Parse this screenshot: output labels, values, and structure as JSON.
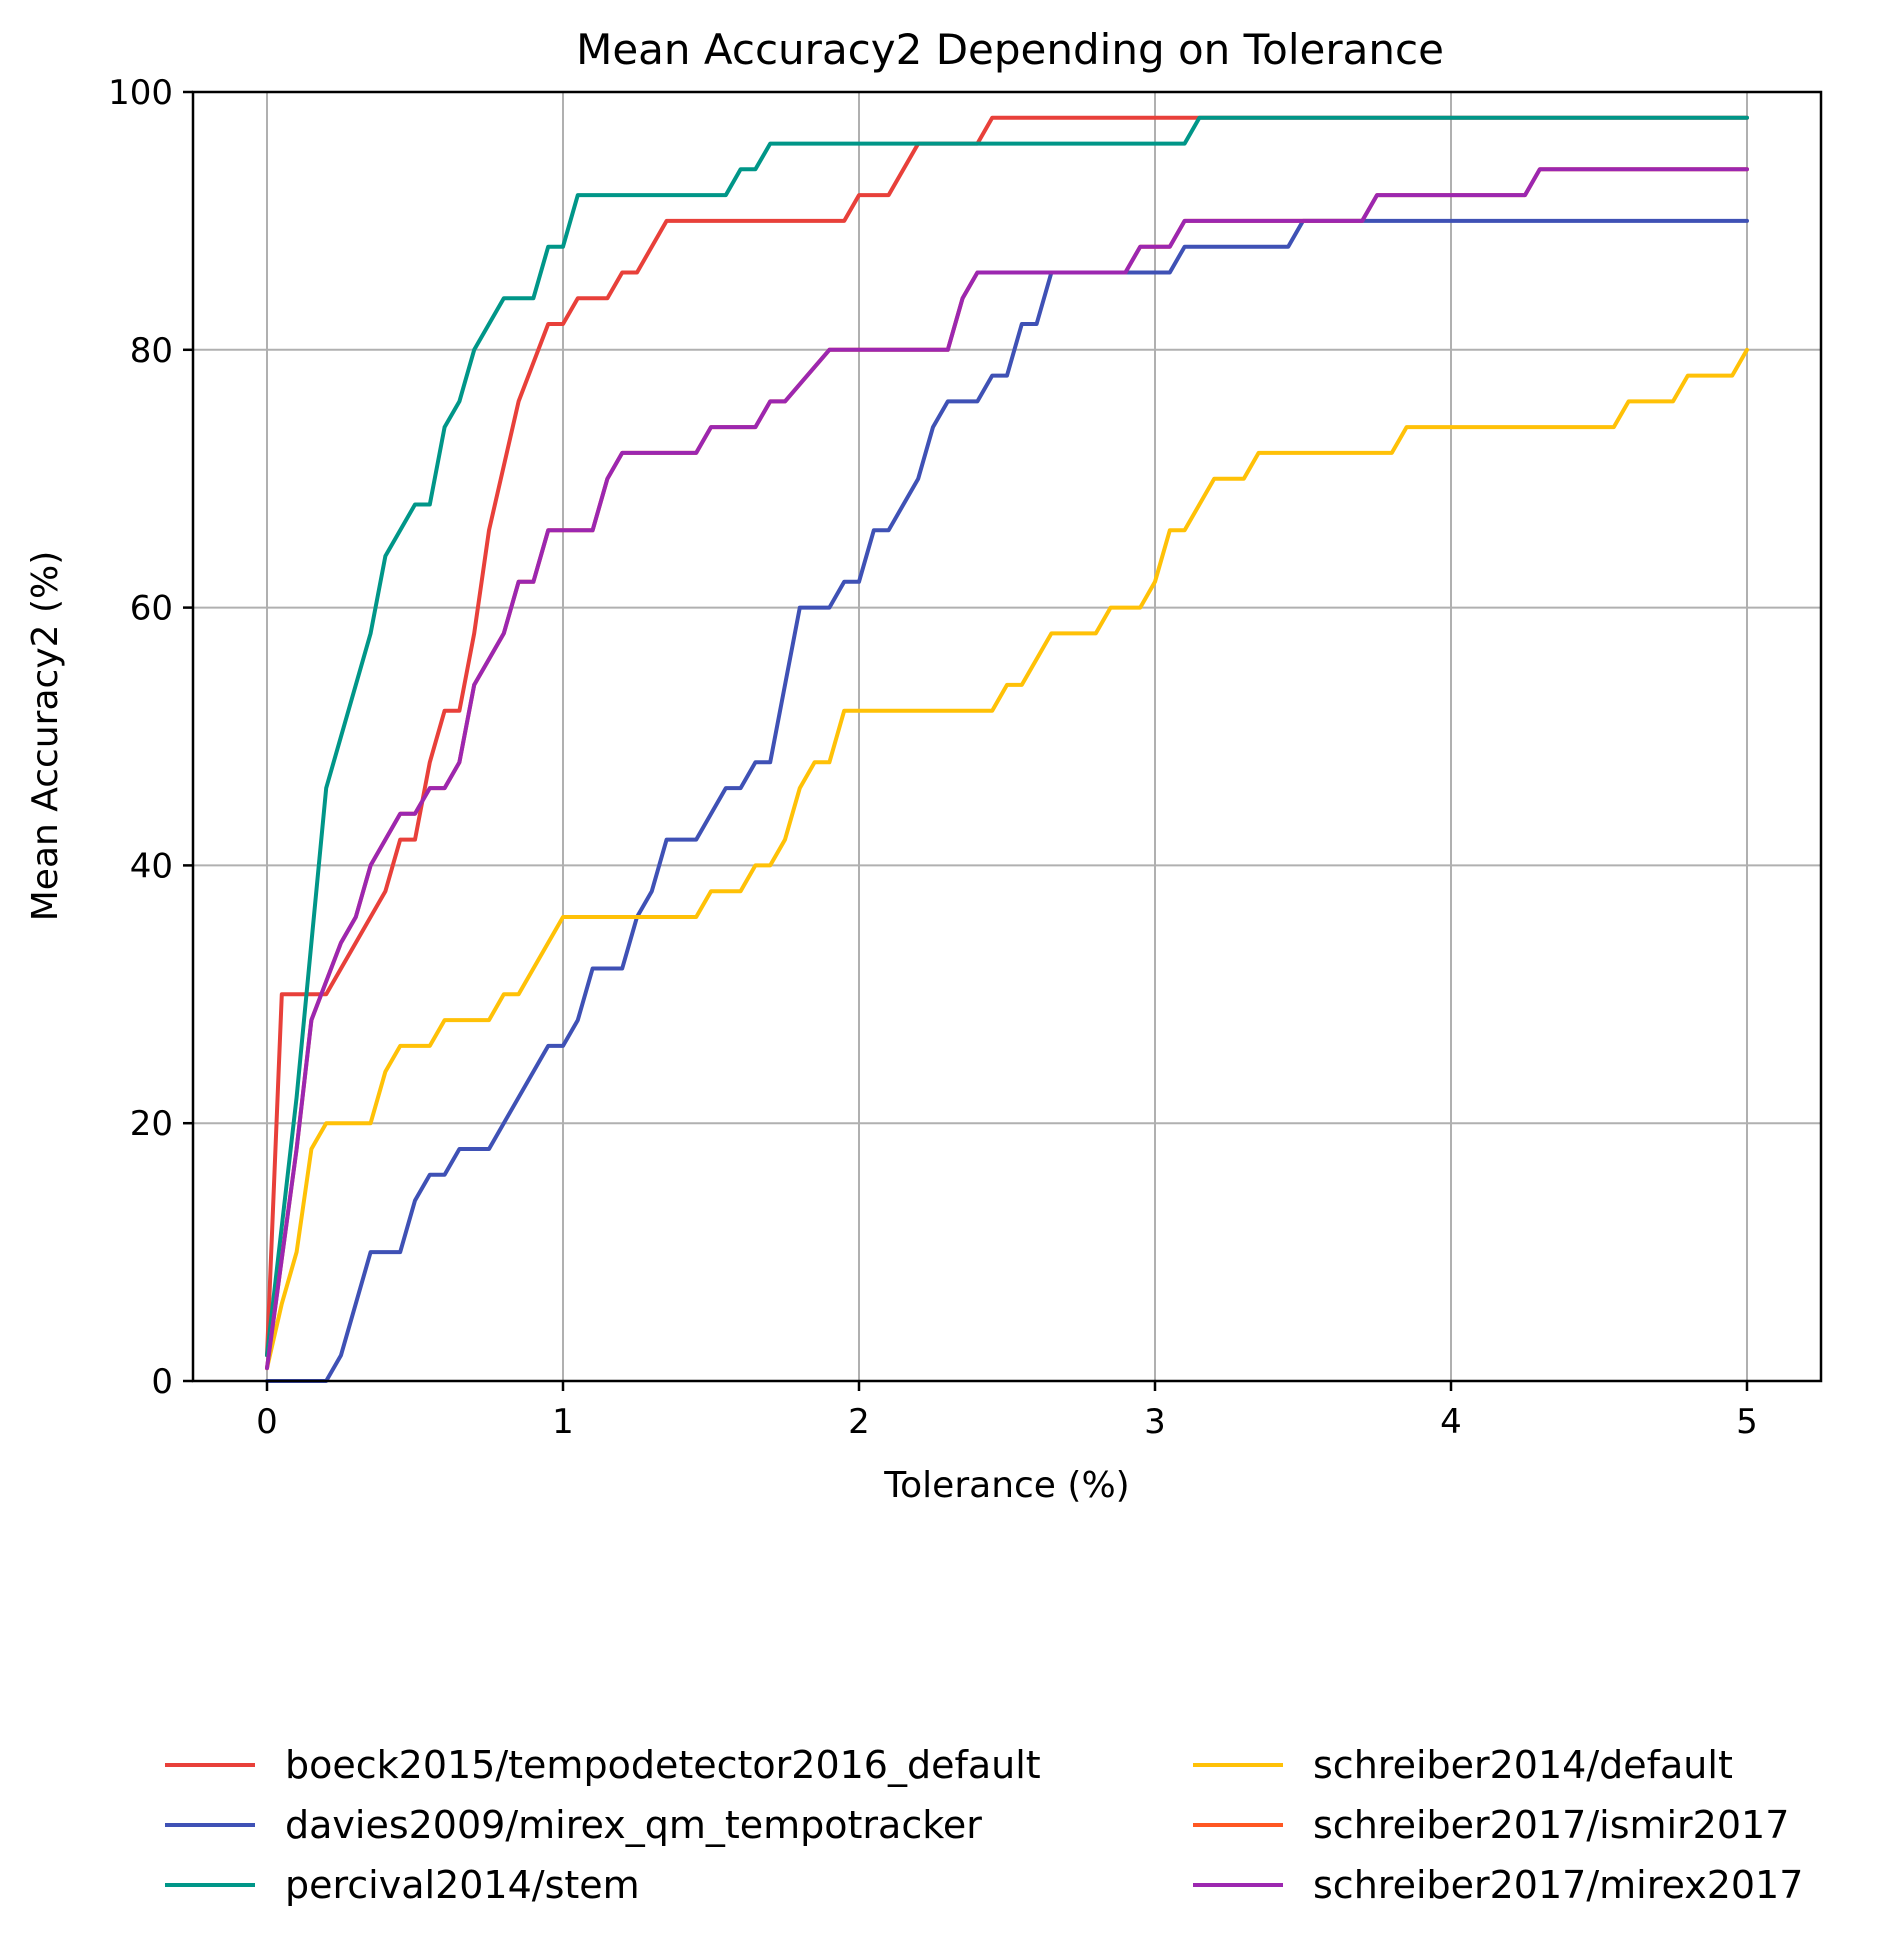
{
  "chart_data": {
    "type": "line",
    "title": "Mean Accuracy2 Depending on Tolerance",
    "xlabel": "Tolerance (%)",
    "ylabel": "Mean Accuracy2 (%)",
    "xlim": [
      -0.25,
      5.25
    ],
    "ylim": [
      0,
      100
    ],
    "xticks": [
      0,
      1,
      2,
      3,
      4,
      5
    ],
    "yticks": [
      0,
      20,
      40,
      60,
      80,
      100
    ],
    "grid": true,
    "legend_position": "bottom, two columns",
    "series": [
      {
        "name": "boeck2015/tempodetector2016_default",
        "color": "#e8403a",
        "x": [
          0,
          0.05,
          0.2,
          0.25,
          0.3,
          0.4,
          0.45,
          0.5,
          0.55,
          0.6,
          0.65,
          0.7,
          0.75,
          0.85,
          0.95,
          1.0,
          1.05,
          1.15,
          1.2,
          1.25,
          1.35,
          1.4,
          1.95,
          2.0,
          2.1,
          2.2,
          2.3,
          2.4,
          2.45,
          5.0
        ],
        "y": [
          2,
          30,
          30,
          32,
          34,
          38,
          42,
          42,
          48,
          52,
          52,
          58,
          66,
          76,
          82,
          82,
          84,
          84,
          86,
          86,
          90,
          90,
          90,
          92,
          92,
          96,
          96,
          96,
          98,
          98
        ]
      },
      {
        "name": "davies2009/mirex_qm_tempotracker",
        "color": "#3f51b5",
        "x": [
          0,
          0.2,
          0.25,
          0.35,
          0.45,
          0.5,
          0.55,
          0.6,
          0.65,
          0.75,
          0.95,
          1.0,
          1.05,
          1.1,
          1.2,
          1.25,
          1.3,
          1.35,
          1.45,
          1.55,
          1.6,
          1.65,
          1.7,
          1.8,
          1.9,
          1.95,
          2.0,
          2.05,
          2.1,
          2.2,
          2.25,
          2.3,
          2.4,
          2.45,
          2.5,
          2.55,
          2.6,
          2.65,
          3.05,
          3.1,
          3.45,
          3.5,
          5.0
        ],
        "y": [
          0,
          0,
          2,
          10,
          10,
          14,
          16,
          16,
          18,
          18,
          26,
          26,
          28,
          32,
          32,
          36,
          38,
          42,
          42,
          46,
          46,
          48,
          48,
          60,
          60,
          62,
          62,
          66,
          66,
          70,
          74,
          76,
          76,
          78,
          78,
          82,
          82,
          86,
          86,
          88,
          88,
          90,
          90
        ]
      },
      {
        "name": "percival2014/stem",
        "color": "#009688",
        "x": [
          0,
          0.1,
          0.2,
          0.35,
          0.4,
          0.5,
          0.55,
          0.6,
          0.65,
          0.7,
          0.8,
          0.9,
          0.95,
          1.0,
          1.05,
          1.55,
          1.6,
          1.65,
          1.7,
          1.75,
          3.1,
          3.15,
          5.0
        ],
        "y": [
          2,
          22,
          46,
          58,
          64,
          68,
          68,
          74,
          76,
          80,
          84,
          84,
          88,
          88,
          92,
          92,
          94,
          94,
          96,
          96,
          96,
          98,
          98
        ]
      },
      {
        "name": "schreiber2014/default",
        "color": "#ffc107",
        "x": [
          0,
          0.05,
          0.1,
          0.15,
          0.2,
          0.35,
          0.4,
          0.45,
          0.55,
          0.6,
          0.75,
          0.8,
          0.85,
          1.0,
          1.45,
          1.5,
          1.6,
          1.65,
          1.7,
          1.75,
          1.8,
          1.85,
          1.9,
          1.95,
          2.45,
          2.5,
          2.55,
          2.65,
          2.8,
          2.85,
          2.95,
          3.0,
          3.05,
          3.1,
          3.2,
          3.3,
          3.35,
          3.8,
          3.85,
          4.55,
          4.6,
          4.75,
          4.8,
          4.95,
          5.0
        ],
        "y": [
          1,
          6,
          10,
          18,
          20,
          20,
          24,
          26,
          26,
          28,
          28,
          30,
          30,
          36,
          36,
          38,
          38,
          40,
          40,
          42,
          46,
          48,
          48,
          52,
          52,
          54,
          54,
          58,
          58,
          60,
          60,
          62,
          66,
          66,
          70,
          70,
          72,
          72,
          74,
          74,
          76,
          76,
          78,
          78,
          80
        ]
      },
      {
        "name": "schreiber2017/ismir2017",
        "color": "#ff5722",
        "x": [
          0,
          0.1,
          0.15,
          0.25,
          0.3,
          0.35,
          0.45,
          0.5,
          0.55,
          0.6,
          0.65,
          0.7,
          0.8,
          0.85,
          0.9,
          0.95,
          1.1,
          1.15,
          1.2,
          1.45,
          1.5,
          1.65,
          1.7,
          1.75,
          1.9,
          2.3,
          2.35,
          2.4,
          2.9,
          2.95,
          3.0,
          3.05,
          3.1,
          3.7,
          3.75,
          4.25,
          4.3,
          5.0
        ],
        "y": [
          1,
          18,
          28,
          34,
          36,
          40,
          44,
          44,
          46,
          46,
          48,
          54,
          58,
          62,
          62,
          66,
          66,
          70,
          72,
          72,
          74,
          74,
          76,
          76,
          80,
          80,
          84,
          86,
          86,
          88,
          88,
          88,
          90,
          90,
          92,
          92,
          94,
          94
        ]
      },
      {
        "name": "schreiber2017/mirex2017",
        "color": "#9c27b0",
        "x": [
          0,
          0.1,
          0.15,
          0.25,
          0.3,
          0.35,
          0.45,
          0.5,
          0.55,
          0.6,
          0.65,
          0.7,
          0.8,
          0.85,
          0.9,
          0.95,
          1.1,
          1.15,
          1.2,
          1.45,
          1.5,
          1.65,
          1.7,
          1.75,
          1.9,
          2.3,
          2.35,
          2.4,
          2.9,
          2.95,
          3.0,
          3.05,
          3.1,
          3.7,
          3.75,
          4.25,
          4.3,
          5.0
        ],
        "y": [
          1,
          18,
          28,
          34,
          36,
          40,
          44,
          44,
          46,
          46,
          48,
          54,
          58,
          62,
          62,
          66,
          66,
          70,
          72,
          72,
          74,
          74,
          76,
          76,
          80,
          80,
          84,
          86,
          86,
          88,
          88,
          88,
          90,
          90,
          92,
          92,
          94,
          94
        ]
      }
    ]
  }
}
